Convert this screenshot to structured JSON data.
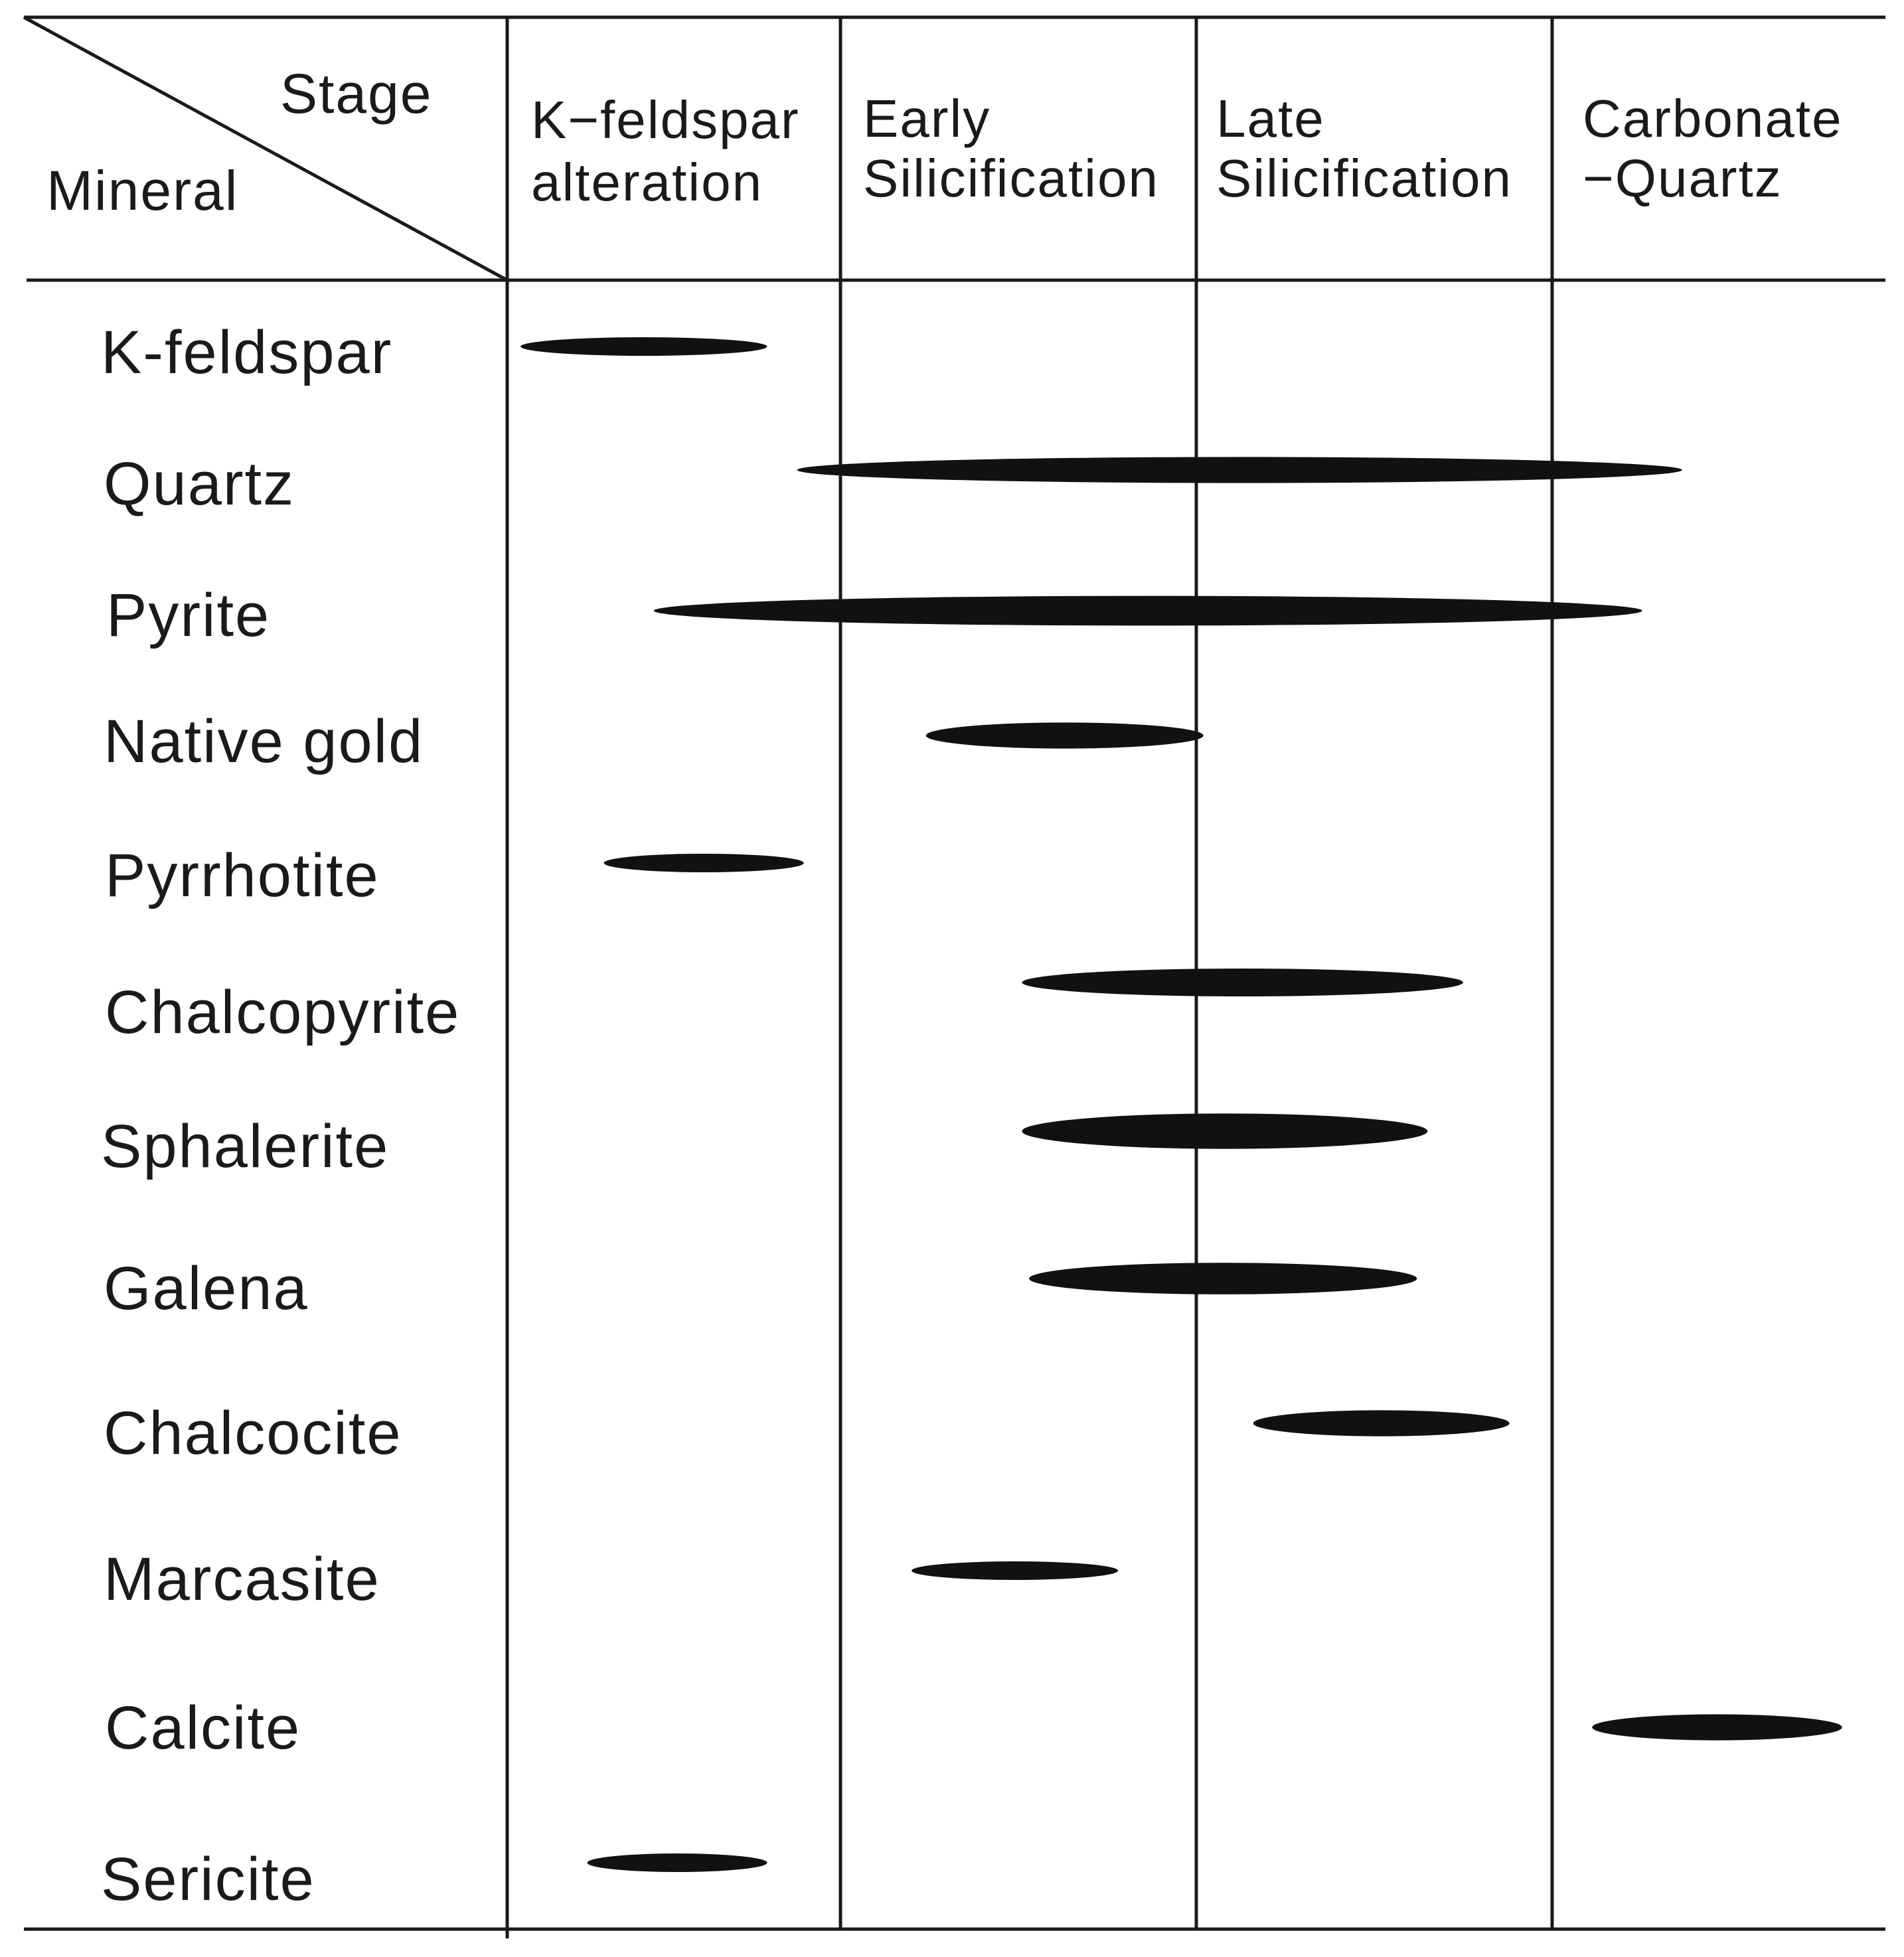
{
  "header": {
    "stage_corner_label": "Stage",
    "mineral_corner_label": "Mineral"
  },
  "stages": [
    {
      "line1": "K−feldspar",
      "line2": "alteration"
    },
    {
      "line1": "Early",
      "line2": "Silicification"
    },
    {
      "line1": "Late",
      "line2": "Silicification"
    },
    {
      "line1": "Carbonate",
      "line2": "−Quartz"
    }
  ],
  "minerals": [
    {
      "name": "K-feldspar",
      "start": 0.04,
      "end": 0.78,
      "thickness": 0.5
    },
    {
      "name": "Quartz",
      "start": 0.87,
      "end": 3.39,
      "thickness": 0.7
    },
    {
      "name": "Pyrite",
      "start": 0.44,
      "end": 3.27,
      "thickness": 0.8
    },
    {
      "name": "Native gold",
      "start": 1.24,
      "end": 2.02,
      "thickness": 0.7
    },
    {
      "name": "Pyrrhotite",
      "start": 0.29,
      "end": 0.89,
      "thickness": 0.5
    },
    {
      "name": "Chalcopyrite",
      "start": 1.51,
      "end": 2.75,
      "thickness": 0.75
    },
    {
      "name": "Sphalerite",
      "start": 1.51,
      "end": 2.65,
      "thickness": 0.95
    },
    {
      "name": "Galena",
      "start": 1.53,
      "end": 2.62,
      "thickness": 0.85
    },
    {
      "name": "Chalcocite",
      "start": 2.16,
      "end": 2.88,
      "thickness": 0.7
    },
    {
      "name": "Marcasite",
      "start": 1.2,
      "end": 1.78,
      "thickness": 0.5
    },
    {
      "name": "Calcite",
      "start": 3.12,
      "end": 3.87,
      "thickness": 0.7
    },
    {
      "name": "Sericite",
      "start": 0.24,
      "end": 0.78,
      "thickness": 0.5
    }
  ],
  "colors": {
    "bar": "#111111",
    "line": "#1a1a1a",
    "background": "#ffffff"
  }
}
